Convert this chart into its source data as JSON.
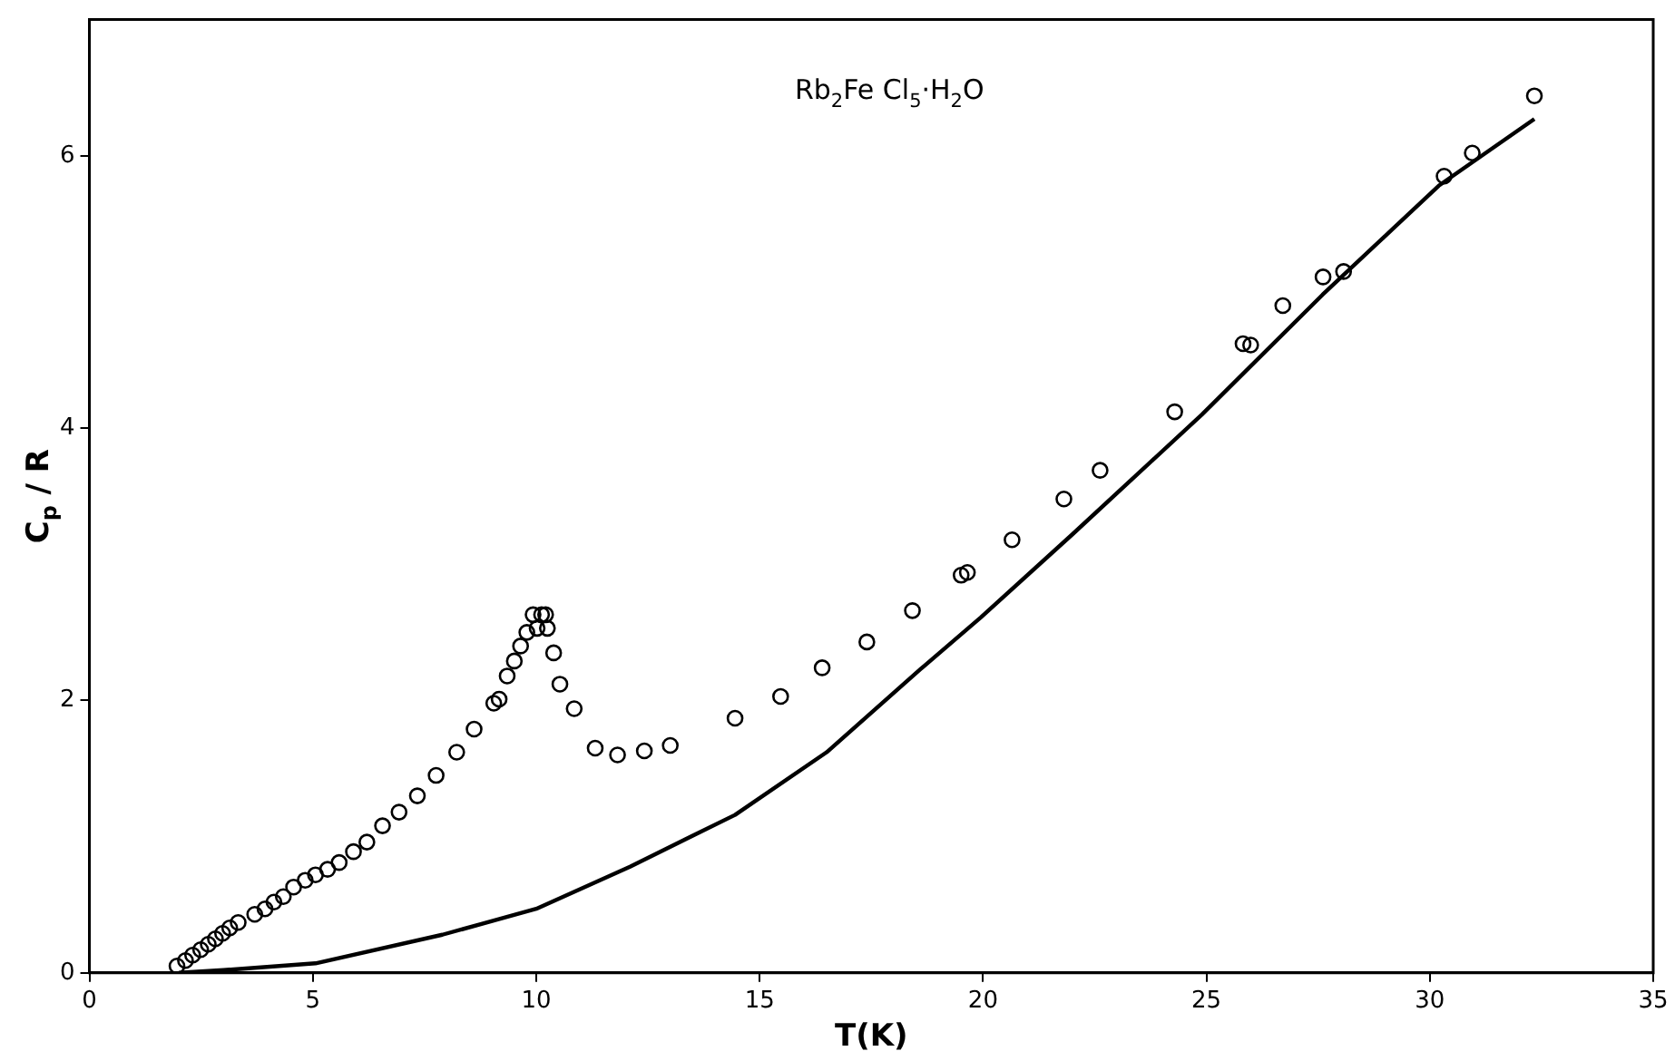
{
  "chart_data": {
    "type": "scatter",
    "xlabel": "T(K)",
    "ylabel": "C$_{p}$ / R",
    "annotations": [
      "Rb$_{2}$Fe Cl$_{5}$·H$_{2}$O"
    ],
    "xlim": [
      0,
      35
    ],
    "ylim": [
      0,
      7
    ],
    "xticks": [
      0,
      5,
      10,
      15,
      20,
      25,
      30,
      35
    ],
    "yticks": [
      0,
      2,
      4,
      6
    ],
    "grid": false,
    "legend": false,
    "series": [
      {
        "color": "#000000",
        "marker": "circle",
        "x": [
          1.96,
          2.15,
          2.31,
          2.49,
          2.66,
          2.82,
          2.98,
          3.14,
          3.33,
          3.7,
          3.93,
          4.13,
          4.34,
          4.57,
          4.83,
          5.06,
          5.33,
          5.59,
          5.91,
          6.21,
          6.56,
          6.93,
          7.34,
          7.76,
          8.22,
          8.61,
          9.05,
          9.17,
          9.35,
          9.51,
          9.65,
          9.79,
          9.93,
          10.02,
          10.12,
          10.21,
          10.25,
          10.39,
          10.53,
          10.85,
          11.32,
          11.82,
          12.42,
          13.0,
          14.45,
          15.47,
          16.4,
          17.4,
          18.42,
          19.51,
          19.65,
          20.65,
          21.81,
          22.62,
          24.29,
          25.82,
          25.99,
          26.71,
          27.61,
          28.07,
          30.32,
          30.95,
          32.34
        ],
        "values": [
          0.05,
          0.09,
          0.13,
          0.17,
          0.21,
          0.25,
          0.29,
          0.33,
          0.37,
          0.43,
          0.47,
          0.52,
          0.56,
          0.63,
          0.68,
          0.72,
          0.76,
          0.81,
          0.89,
          0.96,
          1.08,
          1.18,
          1.3,
          1.45,
          1.62,
          1.79,
          1.98,
          2.01,
          2.18,
          2.29,
          2.4,
          2.5,
          2.63,
          2.53,
          2.63,
          2.63,
          2.53,
          2.35,
          2.12,
          1.94,
          1.65,
          1.6,
          1.63,
          1.67,
          1.87,
          2.03,
          2.24,
          2.43,
          2.66,
          2.92,
          2.94,
          3.18,
          3.48,
          3.69,
          4.12,
          4.62,
          4.61,
          4.9,
          5.11,
          5.15,
          5.85,
          6.02,
          6.44
        ]
      },
      {
        "type": "line",
        "color": "#000000",
        "marker": "none",
        "line_style": "solid",
        "x": [
          2.0,
          3.0,
          5.06,
          7.9,
          10.0,
          12.1,
          14.45,
          16.5,
          18.6,
          19.95,
          22.0,
          24.9,
          27.6,
          30.2,
          32.34
        ],
        "values": [
          0,
          0.02,
          0.07,
          0.28,
          0.47,
          0.78,
          1.16,
          1.62,
          2.23,
          2.61,
          3.22,
          4.1,
          4.98,
          5.78,
          6.27
        ]
      }
    ]
  }
}
